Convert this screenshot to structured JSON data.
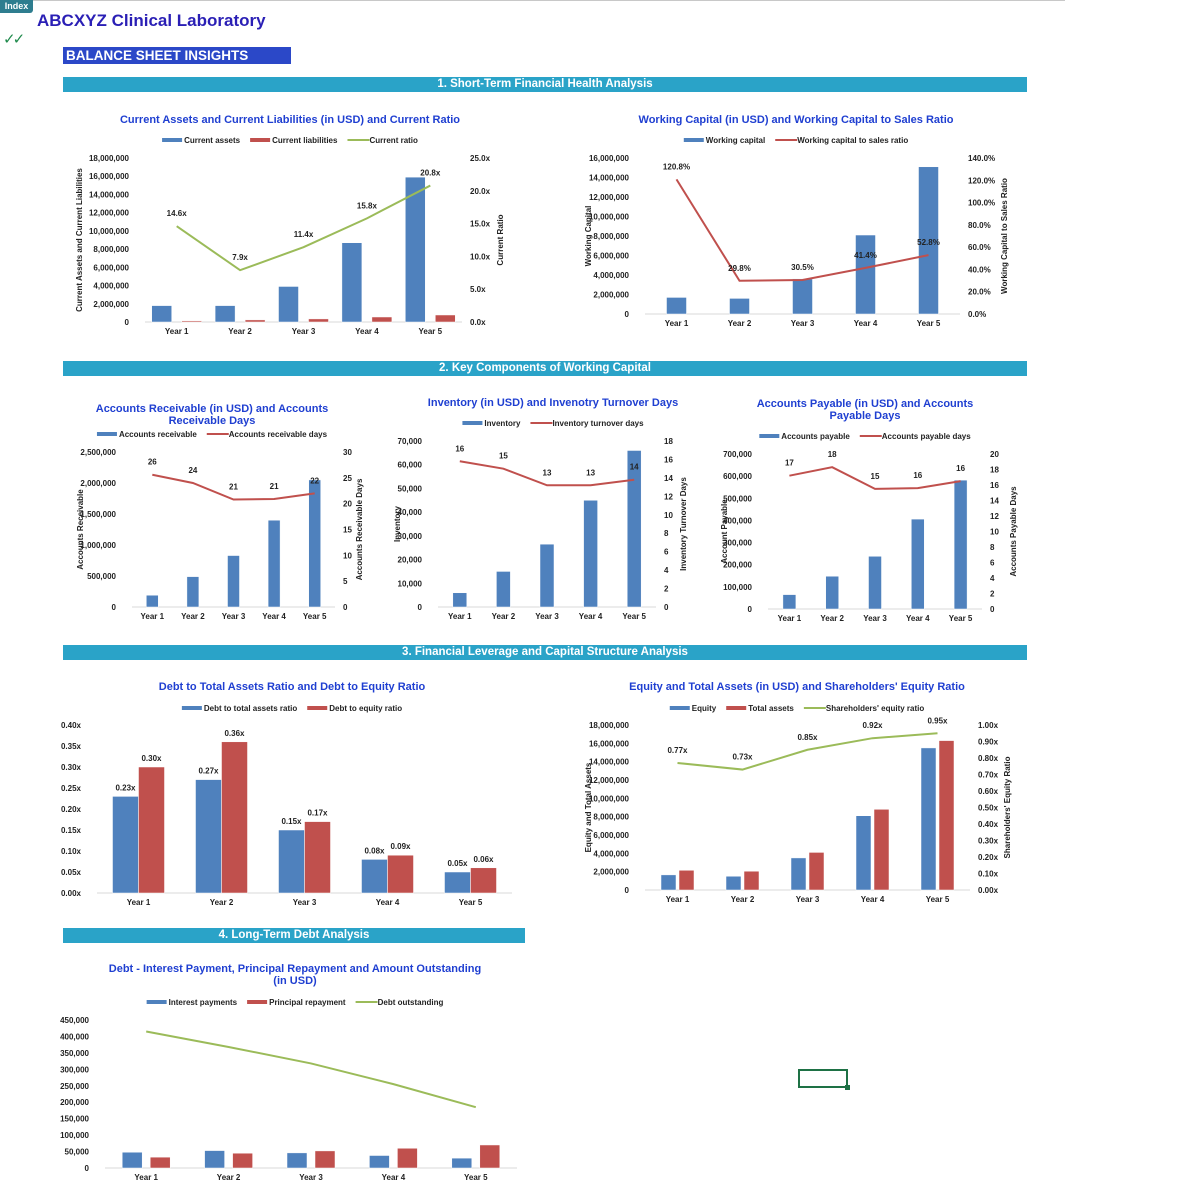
{
  "header": {
    "index_tab": "Index",
    "company": "ABCXYZ Clinical Laboratory",
    "checkmark_icon": "double-check-icon",
    "banner": "BALANCE SHEET INSIGHTS"
  },
  "sections": [
    "1. Short-Term Financial Health Analysis",
    "2. Key Components of Working Capital",
    "3. Financial Leverage and Capital Structure Analysis",
    "4. Long-Term Debt Analysis"
  ],
  "colors": {
    "blue": "#4f81bd",
    "red": "#c0504d",
    "green": "#9bbb59",
    "title": "#1f3fd1",
    "section": "#2aa3c8",
    "banner": "#2b48c8"
  },
  "chart_data": [
    {
      "id": "c1",
      "type": "bar+line",
      "title": [
        "Current Assets and Current Liabilities (in USD) and Current Ratio"
      ],
      "categories": [
        "Year 1",
        "Year 2",
        "Year 3",
        "Year 4",
        "Year 5"
      ],
      "series": [
        {
          "name": "Current assets",
          "kind": "bar",
          "color": "#4f81bd",
          "values": [
            1800000,
            1800000,
            3900000,
            8700000,
            15900000
          ]
        },
        {
          "name": "Current liabilities",
          "kind": "bar",
          "color": "#c0504d",
          "values": [
            120000,
            230000,
            340000,
            550000,
            770000
          ]
        },
        {
          "name": "Current ratio",
          "kind": "line",
          "axis": "right",
          "color": "#9bbb59",
          "values": [
            14.6,
            7.9,
            11.4,
            15.8,
            20.8
          ],
          "labels": [
            "14.6x",
            "7.9x",
            "11.4x",
            "15.8x",
            "20.8x"
          ]
        }
      ],
      "ylabel": "Current Assets and Current Liabilities",
      "ylim": [
        0,
        18000000
      ],
      "yticks": [
        "0",
        "2,000,000",
        "4,000,000",
        "6,000,000",
        "8,000,000",
        "10,000,000",
        "12,000,000",
        "14,000,000",
        "16,000,000",
        "18,000,000"
      ],
      "y2label": "Current Ratio",
      "y2lim": [
        0,
        25
      ],
      "y2ticks": [
        "0.0x",
        "5.0x",
        "10.0x",
        "15.0x",
        "20.0x",
        "25.0x"
      ],
      "legend": "top",
      "grid": false
    },
    {
      "id": "c2",
      "type": "bar+line",
      "title": [
        "Working Capital (in USD) and Working Capital to Sales Ratio"
      ],
      "categories": [
        "Year 1",
        "Year 2",
        "Year 3",
        "Year 4",
        "Year 5"
      ],
      "series": [
        {
          "name": "Working capital",
          "kind": "bar",
          "color": "#4f81bd",
          "values": [
            1700000,
            1600000,
            3600000,
            8100000,
            15100000
          ]
        },
        {
          "name": "Working capital to sales ratio",
          "kind": "line",
          "axis": "right",
          "color": "#c0504d",
          "values": [
            120.8,
            29.8,
            30.5,
            41.4,
            52.8
          ],
          "labels": [
            "120.8%",
            "29.8%",
            "30.5%",
            "41.4%",
            "52.8%"
          ]
        }
      ],
      "ylabel": "Working Capital",
      "ylim": [
        0,
        16000000
      ],
      "yticks": [
        "0",
        "2,000,000",
        "4,000,000",
        "6,000,000",
        "8,000,000",
        "10,000,000",
        "12,000,000",
        "14,000,000",
        "16,000,000"
      ],
      "y2label": "Working Capital to Sales Ratio",
      "y2lim": [
        0,
        140
      ],
      "y2ticks": [
        "0.0%",
        "20.0%",
        "40.0%",
        "60.0%",
        "80.0%",
        "100.0%",
        "120.0%",
        "140.0%"
      ],
      "legend": "top",
      "grid": false
    },
    {
      "id": "c3",
      "type": "bar+line",
      "title": [
        "Accounts Receivable (in USD) and Accounts",
        "Receivable Days"
      ],
      "categories": [
        "Year 1",
        "Year 2",
        "Year 3",
        "Year 4",
        "Year 5"
      ],
      "series": [
        {
          "name": "Accounts receivable",
          "kind": "bar",
          "color": "#4f81bd",
          "values": [
            190000,
            490000,
            830000,
            1400000,
            2050000
          ]
        },
        {
          "name": "Accounts receivable days",
          "kind": "line",
          "axis": "right",
          "color": "#c0504d",
          "values": [
            25.6,
            24,
            20.8,
            20.9,
            22
          ],
          "labels": [
            "26",
            "24",
            "21",
            "21",
            "22"
          ]
        }
      ],
      "ylabel": "Accounts Receivable",
      "ylim": [
        0,
        2500000
      ],
      "yticks": [
        "0",
        "500,000",
        "1,000,000",
        "1,500,000",
        "2,000,000",
        "2,500,000"
      ],
      "y2label": "Accounts Receivable Days",
      "y2lim": [
        0,
        30
      ],
      "y2ticks": [
        "0",
        "5",
        "10",
        "15",
        "20",
        "25",
        "30"
      ],
      "legend": "top",
      "grid": false
    },
    {
      "id": "c4",
      "type": "bar+line",
      "title": [
        "Inventory (in USD) and Invenotry Turnover Days"
      ],
      "categories": [
        "Year 1",
        "Year 2",
        "Year 3",
        "Year 4",
        "Year 5"
      ],
      "series": [
        {
          "name": "Inventory",
          "kind": "bar",
          "color": "#4f81bd",
          "values": [
            6000,
            15000,
            26500,
            45000,
            66000
          ]
        },
        {
          "name": "Inventory turnover days",
          "kind": "line",
          "axis": "right",
          "color": "#c0504d",
          "values": [
            15.8,
            15,
            13.2,
            13.2,
            13.8
          ],
          "labels": [
            "16",
            "15",
            "13",
            "13",
            "14"
          ]
        }
      ],
      "ylabel": "Inventory",
      "ylim": [
        0,
        70000
      ],
      "yticks": [
        "0",
        "10,000",
        "20,000",
        "30,000",
        "40,000",
        "50,000",
        "60,000",
        "70,000"
      ],
      "y2label": "Inventory Turnover Days",
      "y2lim": [
        0,
        18
      ],
      "y2ticks": [
        "0",
        "2",
        "4",
        "6",
        "8",
        "10",
        "12",
        "14",
        "16",
        "18"
      ],
      "legend": "top",
      "grid": false
    },
    {
      "id": "c5",
      "type": "bar+line",
      "title": [
        "Accounts Payable (in USD) and Accounts",
        "Payable Days"
      ],
      "categories": [
        "Year 1",
        "Year 2",
        "Year 3",
        "Year 4",
        "Year 5"
      ],
      "series": [
        {
          "name": "Accounts payable",
          "kind": "bar",
          "color": "#4f81bd",
          "values": [
            65000,
            148000,
            238000,
            406000,
            582000
          ]
        },
        {
          "name": "Accounts payable days",
          "kind": "line",
          "axis": "right",
          "color": "#c0504d",
          "values": [
            17.2,
            18.3,
            15.5,
            15.6,
            16.5
          ],
          "labels": [
            "17",
            "18",
            "15",
            "16",
            "16"
          ]
        }
      ],
      "ylabel": "Account Payable",
      "ylim": [
        0,
        700000
      ],
      "yticks": [
        "0",
        "100,000",
        "200,000",
        "300,000",
        "400,000",
        "500,000",
        "600,000",
        "700,000"
      ],
      "y2label": "Accounts Payable Days",
      "y2lim": [
        0,
        20
      ],
      "y2ticks": [
        "0",
        "2",
        "4",
        "6",
        "8",
        "10",
        "12",
        "14",
        "16",
        "18",
        "20"
      ],
      "legend": "top",
      "grid": false
    },
    {
      "id": "c6",
      "type": "bar",
      "title": [
        "Debt to Total Assets Ratio and Debt to Equity Ratio"
      ],
      "categories": [
        "Year 1",
        "Year 2",
        "Year 3",
        "Year 4",
        "Year 5"
      ],
      "series": [
        {
          "name": "Debt to total assets ratio",
          "kind": "bar",
          "color": "#4f81bd",
          "values": [
            0.23,
            0.27,
            0.15,
            0.08,
            0.05
          ],
          "labels": [
            "0.23x",
            "0.27x",
            "0.15x",
            "0.08x",
            "0.05x"
          ]
        },
        {
          "name": "Debt to equity ratio",
          "kind": "bar",
          "color": "#c0504d",
          "values": [
            0.3,
            0.36,
            0.17,
            0.09,
            0.06
          ],
          "labels": [
            "0.30x",
            "0.36x",
            "0.17x",
            "0.09x",
            "0.06x"
          ]
        }
      ],
      "ylabel": "",
      "ylim": [
        0,
        0.4
      ],
      "yticks": [
        "0.00x",
        "0.05x",
        "0.10x",
        "0.15x",
        "0.20x",
        "0.25x",
        "0.30x",
        "0.35x",
        "0.40x"
      ],
      "legend": "top",
      "grid": false
    },
    {
      "id": "c7",
      "type": "bar+line",
      "title": [
        "Equity and Total Assets (in USD) and Shareholders' Equity Ratio"
      ],
      "categories": [
        "Year 1",
        "Year 2",
        "Year 3",
        "Year 4",
        "Year 5"
      ],
      "series": [
        {
          "name": "Equity",
          "kind": "bar",
          "color": "#4f81bd",
          "values": [
            1650000,
            1500000,
            3500000,
            8100000,
            15500000
          ]
        },
        {
          "name": "Total assets",
          "kind": "bar",
          "color": "#c0504d",
          "values": [
            2150000,
            2050000,
            4100000,
            8800000,
            16300000
          ]
        },
        {
          "name": "Shareholders' equity ratio",
          "kind": "line",
          "axis": "right",
          "color": "#9bbb59",
          "values": [
            0.77,
            0.73,
            0.85,
            0.92,
            0.95
          ],
          "labels": [
            "0.77x",
            "0.73x",
            "0.85x",
            "0.92x",
            "0.95x"
          ]
        }
      ],
      "ylabel": "Equity and Total Assets",
      "ylim": [
        0,
        18000000
      ],
      "yticks": [
        "0",
        "2,000,000",
        "4,000,000",
        "6,000,000",
        "8,000,000",
        "10,000,000",
        "12,000,000",
        "14,000,000",
        "16,000,000",
        "18,000,000"
      ],
      "y2label": "Shareholders' Equity  Ratio",
      "y2lim": [
        0,
        1
      ],
      "y2ticks": [
        "0.00x",
        "0.10x",
        "0.20x",
        "0.30x",
        "0.40x",
        "0.50x",
        "0.60x",
        "0.70x",
        "0.80x",
        "0.90x",
        "1.00x"
      ],
      "legend": "top",
      "grid": false
    },
    {
      "id": "c8",
      "type": "bar+line",
      "title": [
        "Debt - Interest Payment, Principal Repayment and Amount Outstanding",
        "(in USD)"
      ],
      "categories": [
        "Year 1",
        "Year 2",
        "Year 3",
        "Year 4",
        "Year 5"
      ],
      "series": [
        {
          "name": "Interest payments",
          "kind": "bar",
          "color": "#4f81bd",
          "values": [
            48000,
            53000,
            46000,
            38000,
            30000
          ]
        },
        {
          "name": "Principal repayment",
          "kind": "bar",
          "color": "#c0504d",
          "values": [
            33000,
            45000,
            52000,
            60000,
            70000
          ]
        },
        {
          "name": "Debt outstanding",
          "kind": "line",
          "axis": "left",
          "color": "#9bbb59",
          "values": [
            415000,
            368000,
            318000,
            255000,
            185000
          ]
        }
      ],
      "ylabel": "",
      "ylim": [
        0,
        450000
      ],
      "yticks": [
        "0",
        "50,000",
        "100,000",
        "150,000",
        "200,000",
        "250,000",
        "300,000",
        "350,000",
        "400,000",
        "450,000"
      ],
      "legend": "top",
      "grid": false
    }
  ]
}
